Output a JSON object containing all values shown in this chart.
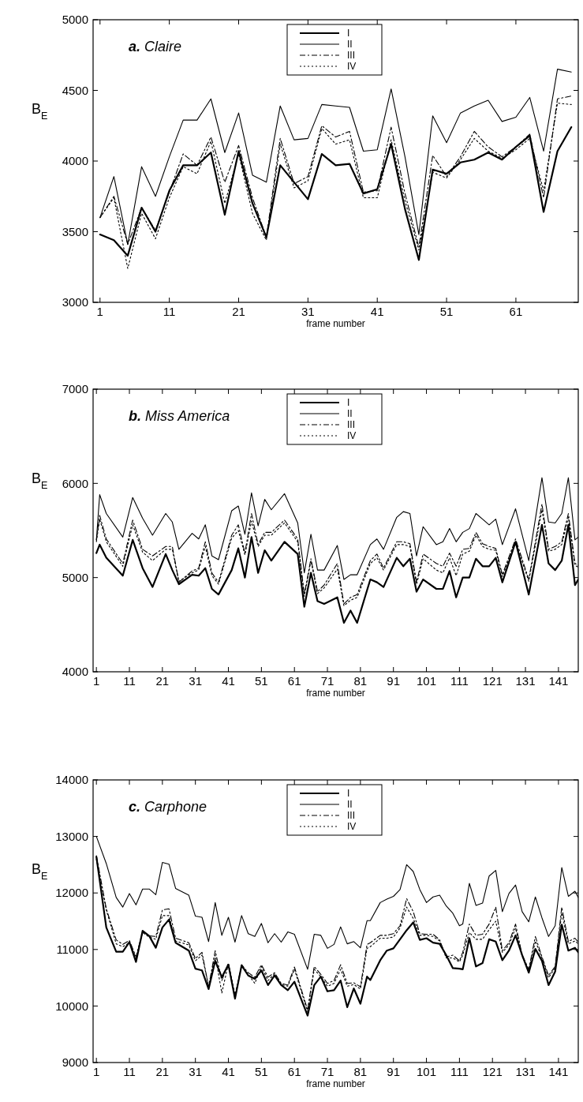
{
  "chart_data": [
    {
      "type": "line",
      "title": "a. Claire",
      "xlabel": "frame number",
      "ylabel": "B$_{E}$",
      "legend": "top",
      "xlim": [
        0,
        70
      ],
      "xticks": [
        1,
        11,
        21,
        31,
        41,
        51,
        61
      ],
      "ylim": [
        3000,
        5000
      ],
      "yticks": [
        3000,
        3500,
        4000,
        4500,
        5000
      ],
      "x": [
        1,
        3,
        5,
        7,
        9,
        11,
        13,
        15,
        17,
        19,
        21,
        23,
        25,
        27,
        29,
        31,
        33,
        35,
        37,
        39,
        41,
        43,
        45,
        47,
        49,
        51,
        53,
        55,
        57,
        59,
        61,
        63,
        65,
        67,
        69
      ],
      "series": [
        {
          "name": "I",
          "color": "#000000",
          "line_style": "solid",
          "values": [
            3480,
            3440,
            3330,
            3670,
            3500,
            3790,
            3970,
            3970,
            4060,
            3620,
            4070,
            3700,
            3460,
            3970,
            3850,
            3730,
            4050,
            3970,
            3980,
            3770,
            3800,
            4120,
            3660,
            3300,
            3940,
            3910,
            3990,
            4010,
            4060,
            4010,
            4100,
            4180,
            3640,
            4070,
            4240
          ]
        },
        {
          "name": "II",
          "color": "#000000",
          "line_style": "solid",
          "values": [
            3600,
            3890,
            3410,
            3960,
            3750,
            4030,
            4290,
            4290,
            4440,
            4060,
            4340,
            3900,
            3850,
            4390,
            4150,
            4160,
            4400,
            4390,
            4380,
            4070,
            4080,
            4510,
            4030,
            3480,
            4320,
            4130,
            4340,
            4390,
            4430,
            4280,
            4310,
            4450,
            4070,
            4650,
            4630
          ]
        },
        {
          "name": "III",
          "color": "#000000",
          "line_style": "dashed",
          "values": [
            3600,
            3750,
            3410,
            3670,
            3510,
            3780,
            4050,
            3970,
            4170,
            3850,
            4110,
            3740,
            3460,
            4160,
            3840,
            3890,
            4250,
            4170,
            4210,
            3780,
            3790,
            4240,
            3770,
            3390,
            4040,
            3890,
            4030,
            4210,
            4100,
            4030,
            4100,
            4190,
            3740,
            4440,
            4460
          ]
        },
        {
          "name": "IV",
          "color": "#000000",
          "line_style": "dotted",
          "values": [
            3600,
            3740,
            3240,
            3630,
            3450,
            3740,
            3960,
            3910,
            4140,
            3700,
            4050,
            3630,
            3440,
            4120,
            3810,
            3860,
            4230,
            4120,
            4150,
            3740,
            3740,
            4150,
            3720,
            3370,
            3920,
            3880,
            4010,
            4160,
            4070,
            4020,
            4080,
            4160,
            3790,
            4410,
            4400
          ]
        }
      ]
    },
    {
      "type": "line",
      "title": "b. Miss America",
      "xlabel": "frame number",
      "ylabel": "B$_{E}$",
      "legend": "top",
      "xlim": [
        0,
        147
      ],
      "xticks": [
        1,
        11,
        21,
        31,
        41,
        51,
        61,
        71,
        81,
        91,
        101,
        111,
        121,
        131,
        141
      ],
      "ylim": [
        4000,
        7000
      ],
      "yticks": [
        4000,
        5000,
        6000,
        7000
      ],
      "x": [
        1,
        2,
        4,
        9,
        12,
        15,
        18,
        22,
        24,
        26,
        30,
        32,
        34,
        36,
        38,
        42,
        44,
        46,
        48,
        50,
        52,
        54,
        58,
        62,
        64,
        66,
        68,
        70,
        74,
        76,
        78,
        80,
        84,
        86,
        88,
        92,
        94,
        96,
        98,
        100,
        104,
        106,
        108,
        110,
        112,
        114,
        116,
        118,
        120,
        122,
        124,
        128,
        132,
        136,
        138,
        140,
        142,
        144,
        146,
        147
      ],
      "series": [
        {
          "name": "I",
          "color": "#000000",
          "line_style": "solid",
          "values": [
            5260,
            5350,
            5210,
            5020,
            5400,
            5100,
            4900,
            5250,
            5080,
            4930,
            5030,
            5020,
            5100,
            4880,
            4820,
            5080,
            5310,
            5000,
            5430,
            5050,
            5290,
            5180,
            5380,
            5250,
            4690,
            5050,
            4750,
            4720,
            4790,
            4520,
            4650,
            4520,
            4980,
            4950,
            4900,
            5210,
            5120,
            5200,
            4850,
            4980,
            4880,
            4880,
            5070,
            4790,
            5000,
            5000,
            5200,
            5120,
            5120,
            5210,
            4950,
            5380,
            4820,
            5560,
            5150,
            5080,
            5180,
            5560,
            4920,
            4980
          ]
        },
        {
          "name": "II",
          "color": "#000000",
          "line_style": "solid",
          "values": [
            5400,
            5880,
            5680,
            5430,
            5850,
            5630,
            5450,
            5680,
            5590,
            5300,
            5470,
            5410,
            5560,
            5230,
            5190,
            5710,
            5760,
            5460,
            5900,
            5550,
            5830,
            5720,
            5890,
            5580,
            5050,
            5460,
            5080,
            5080,
            5340,
            4980,
            5030,
            5030,
            5350,
            5410,
            5300,
            5640,
            5700,
            5680,
            5230,
            5540,
            5350,
            5380,
            5520,
            5380,
            5480,
            5520,
            5680,
            5620,
            5560,
            5620,
            5350,
            5730,
            5180,
            6060,
            5590,
            5580,
            5680,
            6060,
            5400,
            5430
          ]
        },
        {
          "name": "III",
          "color": "#000000",
          "line_style": "dashed",
          "values": [
            5400,
            5660,
            5410,
            5150,
            5610,
            5300,
            5230,
            5330,
            5330,
            4950,
            5070,
            5100,
            5380,
            5050,
            4950,
            5450,
            5560,
            5260,
            5680,
            5350,
            5480,
            5480,
            5610,
            5410,
            4820,
            5200,
            4850,
            4920,
            5150,
            4720,
            4790,
            4820,
            5180,
            5250,
            5100,
            5380,
            5380,
            5360,
            4950,
            5250,
            5150,
            5120,
            5260,
            5120,
            5300,
            5310,
            5480,
            5360,
            5330,
            5310,
            5030,
            5410,
            4980,
            5780,
            5300,
            5330,
            5380,
            5680,
            5150,
            5130
          ]
        },
        {
          "name": "IV",
          "color": "#000000",
          "line_style": "dotted",
          "values": [
            5380,
            5620,
            5380,
            5120,
            5560,
            5270,
            5180,
            5300,
            5300,
            4960,
            5050,
            5080,
            5330,
            5020,
            4930,
            5420,
            5500,
            5240,
            5600,
            5330,
            5450,
            5450,
            5580,
            5380,
            4800,
            5180,
            4830,
            4890,
            5090,
            4700,
            4760,
            4790,
            5150,
            5210,
            5080,
            5350,
            5350,
            5330,
            4930,
            5200,
            5080,
            5050,
            5210,
            5020,
            5250,
            5280,
            5450,
            5330,
            5300,
            5290,
            5010,
            5380,
            4960,
            5720,
            5280,
            5300,
            5350,
            5640,
            5130,
            5110
          ]
        }
      ]
    },
    {
      "type": "line",
      "title": "c. Carphone",
      "xlabel": "frame number",
      "ylabel": "B$_{E}$",
      "legend": "top",
      "xlim": [
        0,
        147
      ],
      "xticks": [
        1,
        11,
        21,
        31,
        41,
        51,
        61,
        71,
        81,
        91,
        101,
        111,
        121,
        131,
        141
      ],
      "ylim": [
        9000,
        14000
      ],
      "yticks": [
        9000,
        10000,
        11000,
        12000,
        13000,
        14000
      ],
      "x": [
        1,
        4,
        7,
        9,
        11,
        13,
        15,
        17,
        19,
        21,
        23,
        25,
        29,
        31,
        33,
        35,
        37,
        39,
        41,
        43,
        45,
        47,
        49,
        51,
        53,
        55,
        57,
        59,
        61,
        65,
        67,
        69,
        71,
        73,
        75,
        77,
        79,
        81,
        83,
        84,
        87,
        89,
        91,
        93,
        95,
        97,
        99,
        101,
        103,
        105,
        107,
        109,
        111,
        112,
        114,
        116,
        118,
        120,
        122,
        124,
        126,
        128,
        130,
        132,
        134,
        136,
        138,
        140,
        142,
        144,
        146,
        147
      ],
      "series": [
        {
          "name": "I",
          "color": "#000000",
          "line_style": "solid",
          "values": [
            12640,
            11390,
            10960,
            10960,
            11130,
            10780,
            11330,
            11240,
            11030,
            11390,
            11530,
            11120,
            10980,
            10660,
            10630,
            10300,
            10800,
            10510,
            10730,
            10130,
            10720,
            10540,
            10480,
            10630,
            10370,
            10540,
            10370,
            10280,
            10430,
            9830,
            10370,
            10520,
            10260,
            10280,
            10450,
            9980,
            10310,
            10040,
            10520,
            10460,
            10810,
            10980,
            11020,
            11180,
            11340,
            11480,
            11170,
            11200,
            11120,
            11100,
            10900,
            10670,
            10660,
            10650,
            11200,
            10700,
            10760,
            11180,
            11140,
            10810,
            10980,
            11250,
            10900,
            10590,
            11010,
            10800,
            10370,
            10610,
            11440,
            10980,
            11030,
            10950
          ]
        },
        {
          "name": "II",
          "color": "#000000",
          "line_style": "solid",
          "values": [
            13000,
            12520,
            11920,
            11750,
            11990,
            11790,
            12070,
            12070,
            11970,
            12540,
            12510,
            12080,
            11960,
            11590,
            11570,
            11140,
            11830,
            11250,
            11570,
            11130,
            11600,
            11280,
            11230,
            11460,
            11120,
            11280,
            11130,
            11310,
            11270,
            10650,
            11270,
            11250,
            11020,
            11090,
            11400,
            11100,
            11140,
            11030,
            11510,
            11510,
            11830,
            11890,
            11940,
            12060,
            12500,
            12380,
            12060,
            11830,
            11930,
            11960,
            11770,
            11640,
            11420,
            11450,
            12170,
            11780,
            11820,
            12300,
            12400,
            11670,
            11990,
            12140,
            11670,
            11490,
            11930,
            11560,
            11230,
            11420,
            12450,
            11940,
            12030,
            11920
          ]
        },
        {
          "name": "III",
          "color": "#000000",
          "line_style": "dashed",
          "values": [
            12660,
            11720,
            11170,
            11090,
            11160,
            10870,
            11310,
            11240,
            11230,
            11700,
            11720,
            11200,
            11120,
            10840,
            10950,
            10340,
            10980,
            10450,
            10760,
            10170,
            10730,
            10590,
            10510,
            10730,
            10510,
            10590,
            10400,
            10370,
            10690,
            9930,
            10700,
            10560,
            10400,
            10450,
            10730,
            10400,
            10410,
            10340,
            11090,
            11120,
            11250,
            11250,
            11280,
            11420,
            11900,
            11670,
            11280,
            11270,
            11270,
            11170,
            10870,
            10900,
            10800,
            10950,
            11450,
            11250,
            11270,
            11450,
            11750,
            10980,
            11120,
            11450,
            10900,
            10650,
            11230,
            10870,
            10540,
            10700,
            11750,
            11140,
            11200,
            11130
          ]
        },
        {
          "name": "IV",
          "color": "#000000",
          "line_style": "dotted",
          "values": [
            12600,
            11700,
            11100,
            11050,
            11120,
            10850,
            11300,
            11220,
            11180,
            11600,
            11600,
            11150,
            11080,
            10800,
            10900,
            10350,
            10900,
            10230,
            10750,
            10200,
            10700,
            10560,
            10400,
            10700,
            10450,
            10570,
            10380,
            10350,
            10650,
            9900,
            10650,
            10520,
            10350,
            10400,
            10650,
            10350,
            10380,
            10300,
            11020,
            11050,
            11200,
            11200,
            11220,
            11380,
            11750,
            11550,
            11250,
            11250,
            11230,
            11150,
            10850,
            10850,
            10780,
            10900,
            11300,
            11180,
            11180,
            11350,
            11500,
            10950,
            11080,
            11380,
            10880,
            10620,
            11150,
            10850,
            10500,
            10680,
            11650,
            11100,
            11150,
            11100
          ]
        }
      ]
    }
  ]
}
